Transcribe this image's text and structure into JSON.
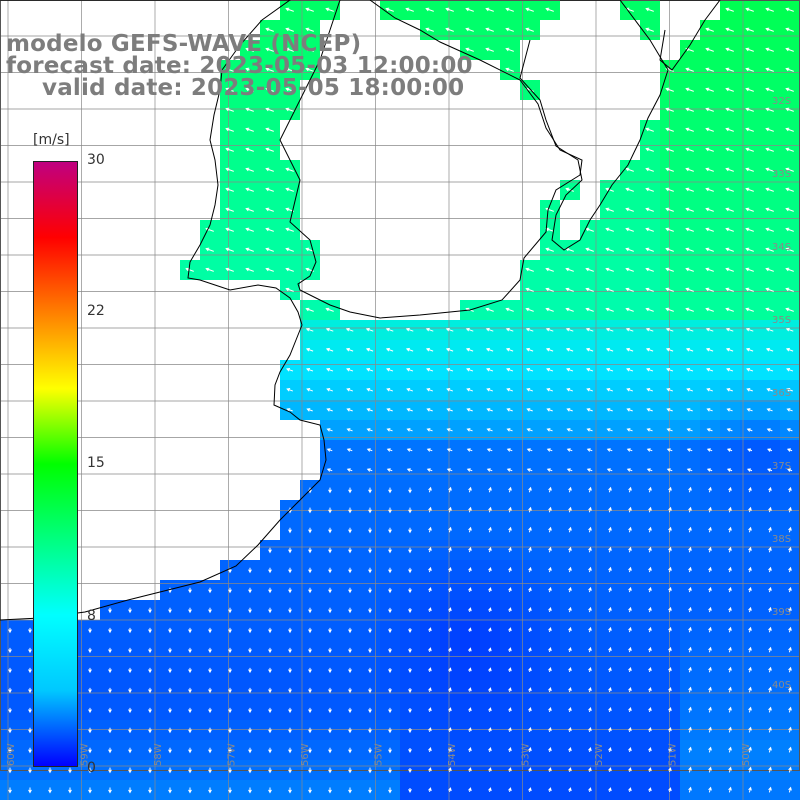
{
  "title": {
    "line1": "modelo GEFS-WAVE (NCEP)",
    "line2": "forecast date: 2023-05-03 12:00:00",
    "line3": "valid date: 2023-05-05 18:00:00"
  },
  "colorbar": {
    "unit": "[m/s]",
    "ticks": [
      "30",
      "22",
      "15",
      "8",
      "0"
    ],
    "min": 0,
    "max": 30,
    "colors": [
      "#0000ff",
      "#00c8ff",
      "#00ffff",
      "#00ff80",
      "#00ff00",
      "#ffff00",
      "#ff8000",
      "#ff0000",
      "#c00080"
    ]
  },
  "map": {
    "lat_labels": [
      "32S",
      "33S",
      "34S",
      "35S",
      "36S",
      "37S",
      "38S",
      "39S",
      "40S"
    ],
    "lon_labels": [
      "60W",
      "59W",
      "58W",
      "57W",
      "56W",
      "55W",
      "54W",
      "53W",
      "52W",
      "51W",
      "50W"
    ],
    "ocean_color": "#0032ff",
    "land_color": "#ffffff",
    "grid_color": "#888888",
    "coast_color": "#000000"
  }
}
